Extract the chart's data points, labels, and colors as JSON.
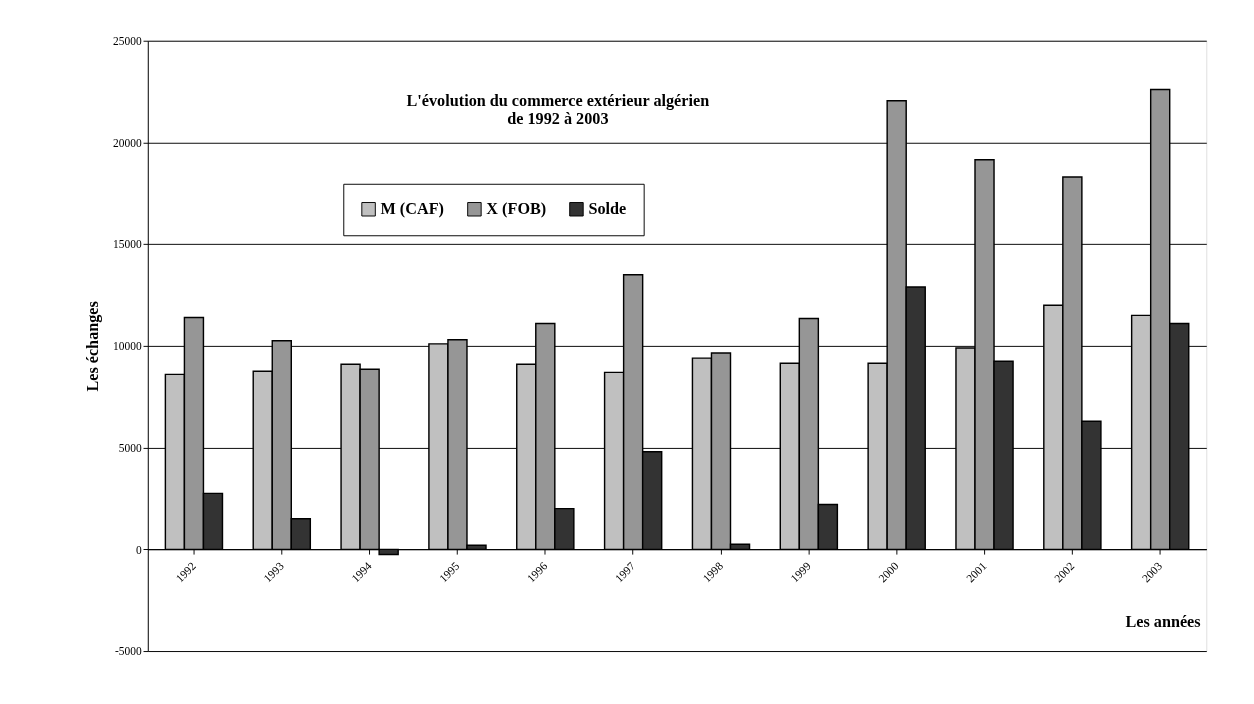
{
  "chart_data": {
    "type": "bar",
    "title": "L'évolution du commerce extérieur algérien\nde 1992 à 2003",
    "xlabel": "Les années",
    "ylabel": "Les échanges",
    "categories": [
      "1992",
      "1993",
      "1994",
      "1995",
      "1996",
      "1997",
      "1998",
      "1999",
      "2000",
      "2001",
      "2002",
      "2003"
    ],
    "series": [
      {
        "name": "M (CAF)",
        "color": "#c0c0c0",
        "values": [
          8600,
          8750,
          9100,
          10100,
          9100,
          8700,
          9400,
          9150,
          9150,
          9900,
          12000,
          11500
        ]
      },
      {
        "name": "X (FOB)",
        "color": "#969696",
        "values": [
          11400,
          10250,
          8850,
          10300,
          11100,
          13500,
          9650,
          11350,
          22050,
          19150,
          18300,
          22600
        ]
      },
      {
        "name": "Solde",
        "color": "#333333",
        "values": [
          2750,
          1500,
          -250,
          200,
          2000,
          4800,
          250,
          2200,
          12900,
          9250,
          6300,
          11100
        ]
      }
    ],
    "ylim": [
      -5000,
      25000
    ],
    "yticks": [
      -5000,
      0,
      5000,
      10000,
      15000,
      20000,
      25000
    ],
    "grid": "y",
    "legend": "top"
  }
}
